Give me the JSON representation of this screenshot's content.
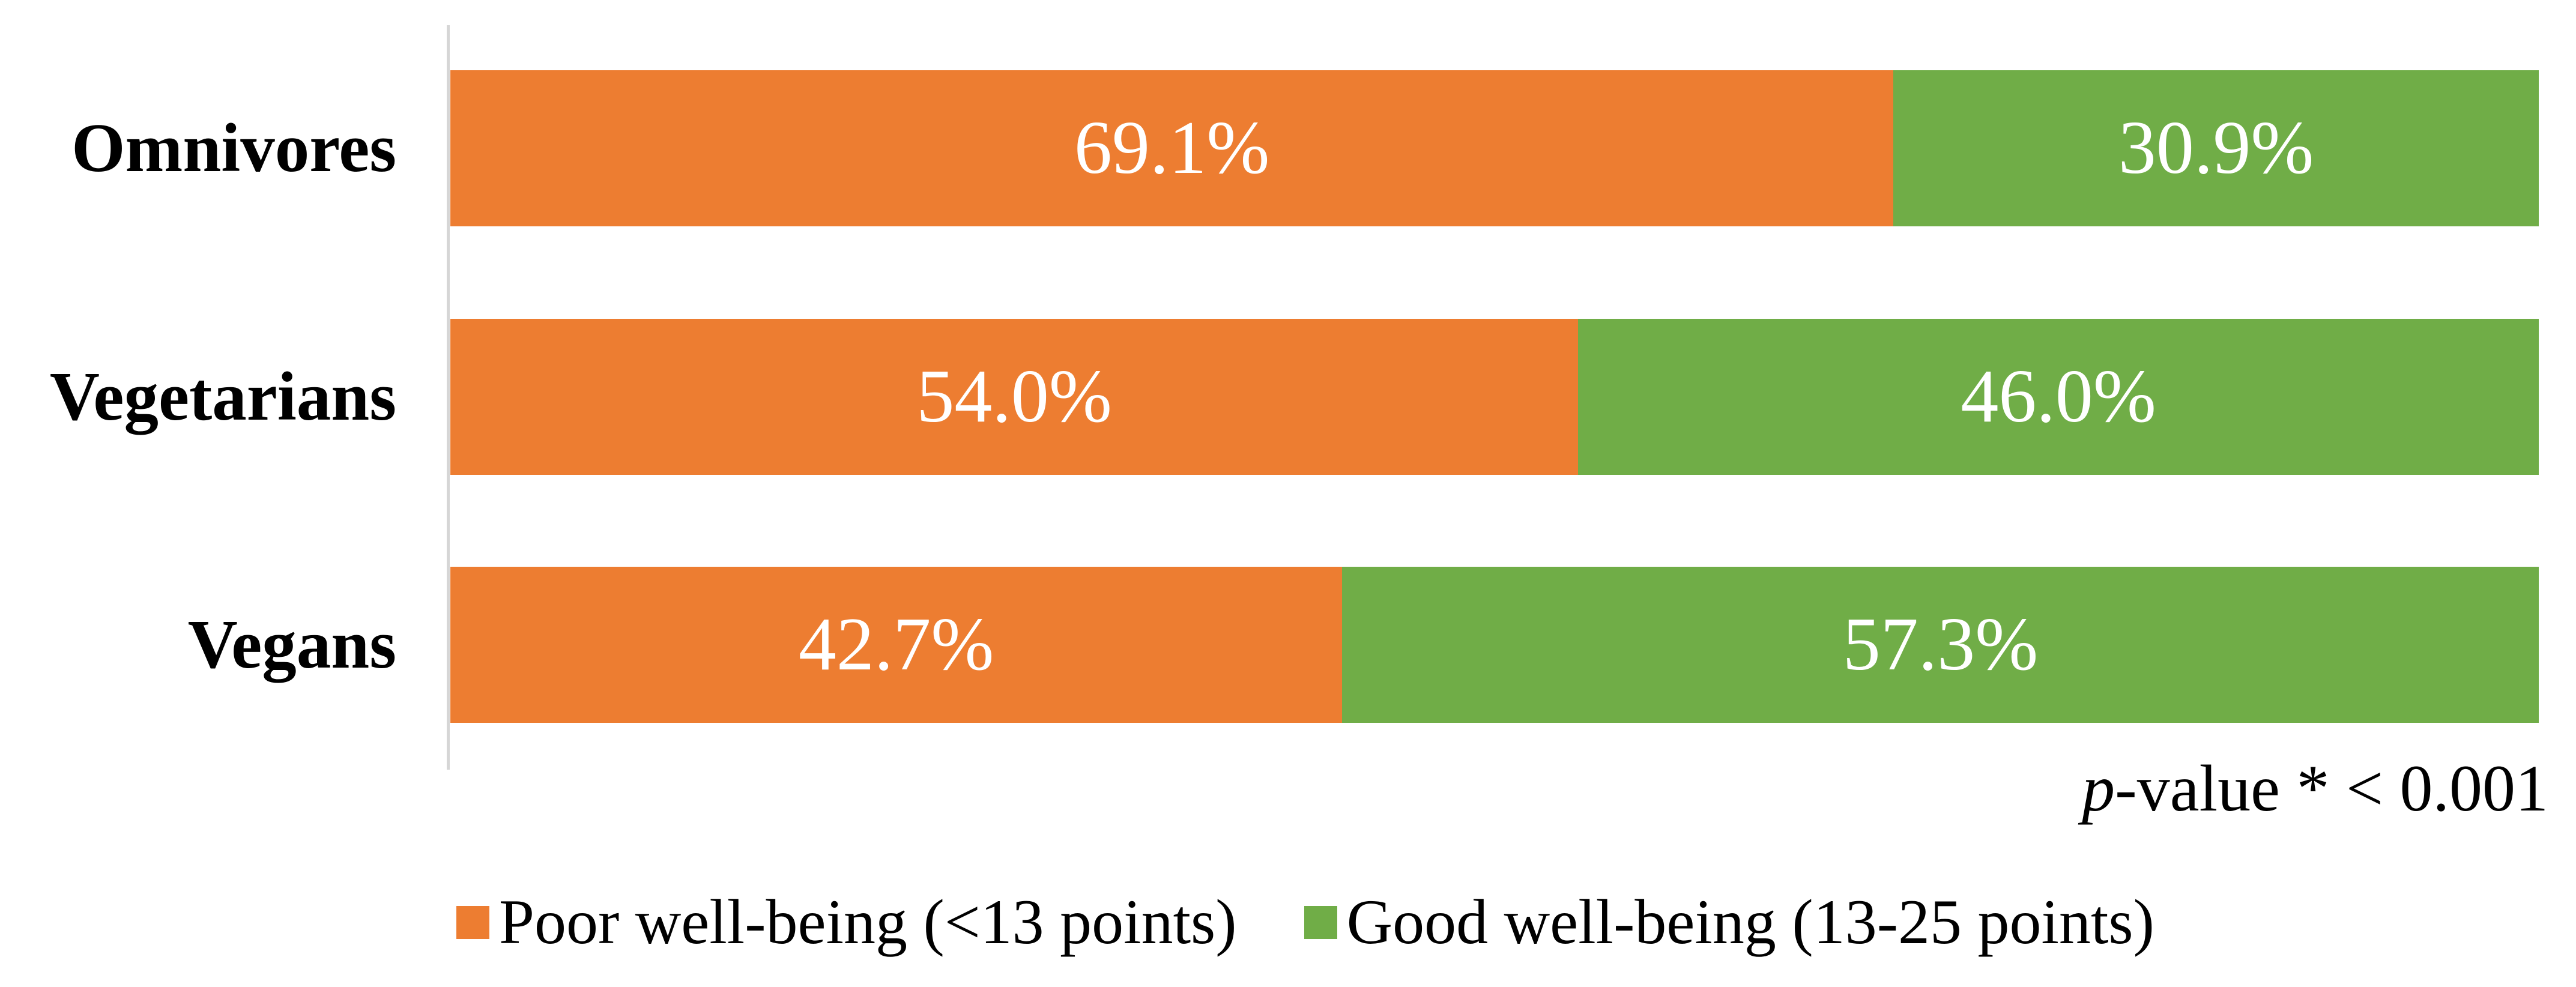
{
  "chart_data": {
    "type": "bar",
    "orientation": "horizontal",
    "stacked": true,
    "units": "percent",
    "title": "",
    "xlabel": "",
    "ylabel": "",
    "xlim": [
      0,
      100
    ],
    "grid": false,
    "legend_position": "bottom",
    "categories": [
      "Omnivores",
      "Vegetarians",
      "Vegans"
    ],
    "series": [
      {
        "name": "Poor well-being (<13 points)",
        "color": "#ED7D31",
        "values": [
          69.1,
          54.0,
          42.7
        ]
      },
      {
        "name": "Good well-being (13-25 points)",
        "color": "#70AD47",
        "values": [
          30.9,
          46.0,
          57.3
        ]
      }
    ],
    "annotation": "p-value * < 0.001"
  },
  "rows": [
    {
      "category": "Omnivores",
      "poor_pct": 69.1,
      "good_pct": 30.9,
      "poor_label": "69.1%",
      "good_label": "30.9%"
    },
    {
      "category": "Vegetarians",
      "poor_pct": 54.0,
      "good_pct": 46.0,
      "poor_label": "54.0%",
      "good_label": "46.0%"
    },
    {
      "category": "Vegans",
      "poor_pct": 42.7,
      "good_pct": 57.3,
      "poor_label": "42.7%",
      "good_label": "57.3%"
    }
  ],
  "annotation": {
    "italic_prefix": "p",
    "rest": "-value * < 0.001"
  },
  "legend": {
    "items": [
      {
        "label": "Poor well-being (<13 points)",
        "color": "#ED7D31"
      },
      {
        "label": "Good well-being (13-25 points)",
        "color": "#70AD47"
      }
    ]
  },
  "colors": {
    "poor": "#ED7D31",
    "good": "#70AD47",
    "axis_line": "#D6D6D6",
    "value_text": "#FFFFFF",
    "text": "#000000",
    "background": "#FFFFFF"
  }
}
